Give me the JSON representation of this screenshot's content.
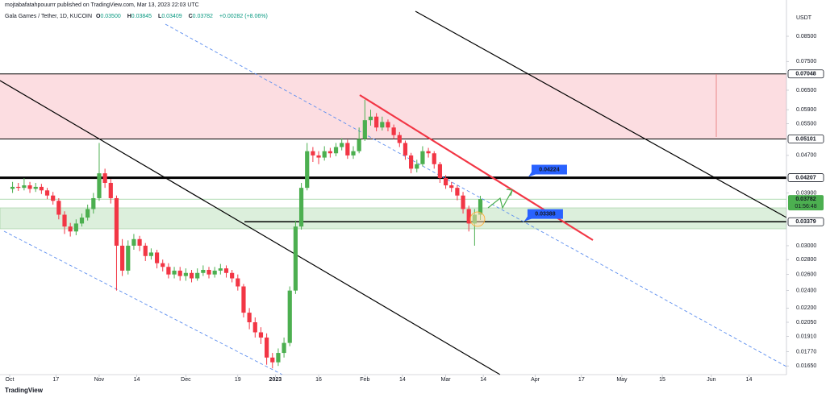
{
  "chart_data": {
    "type": "candlestick",
    "subtitle": "mojtabafatahpouurrr published on TradingView.com, Mar 13, 2023 22:03 UTC",
    "title": "Gala Games / Tether, 1D, KUCOIN",
    "ohlc": [
      {
        "key": "O",
        "value": "0.03500"
      },
      {
        "key": "H",
        "value": "0.03845"
      },
      {
        "key": "L",
        "value": "0.03409"
      },
      {
        "key": "C",
        "value": "0.03782"
      }
    ],
    "change": "+0.00282 (+8.06%)",
    "currency": "USDT",
    "log_scale": true,
    "colors": {
      "up": "#4caf50",
      "down": "#f23645"
    },
    "xlim": [
      -3.35,
      269
    ],
    "ylim": [
      0.0158,
      0.1018
    ],
    "xticks": [
      {
        "value": 0,
        "label": "Oct"
      },
      {
        "value": 16,
        "label": "17"
      },
      {
        "value": 31,
        "label": "Nov"
      },
      {
        "value": 44,
        "label": "14"
      },
      {
        "value": 61,
        "label": "Dec"
      },
      {
        "value": 79,
        "label": "19"
      },
      {
        "value": 92,
        "label": "2023"
      },
      {
        "value": 107,
        "label": "16"
      },
      {
        "value": 123,
        "label": "Feb"
      },
      {
        "value": 136,
        "label": "14"
      },
      {
        "value": 151,
        "label": "Mar"
      },
      {
        "value": 164,
        "label": "14"
      },
      {
        "value": 182,
        "label": "Apr"
      },
      {
        "value": 198,
        "label": "17"
      },
      {
        "value": 212,
        "label": "May"
      },
      {
        "value": 226,
        "label": "15"
      },
      {
        "value": 243,
        "label": "Jun"
      },
      {
        "value": 256,
        "label": "14"
      }
    ],
    "yticks": [
      {
        "value": 0.085,
        "label": "0.08500"
      },
      {
        "value": 0.075,
        "label": "0.07500"
      },
      {
        "value": 0.065,
        "label": "0.06500"
      },
      {
        "value": 0.059,
        "label": "0.05900"
      },
      {
        "value": 0.055,
        "label": "0.05500"
      },
      {
        "value": 0.047,
        "label": "0.04700"
      },
      {
        "value": 0.039,
        "label": "0.03900"
      },
      {
        "value": 0.03,
        "label": "0.03000"
      },
      {
        "value": 0.028,
        "label": "0.02800"
      },
      {
        "value": 0.026,
        "label": "0.02600"
      },
      {
        "value": 0.024,
        "label": "0.02400"
      },
      {
        "value": 0.022,
        "label": "0.02200"
      },
      {
        "value": 0.0205,
        "label": "0.02050"
      },
      {
        "value": 0.0191,
        "label": "0.01910"
      },
      {
        "value": 0.0177,
        "label": "0.01770"
      },
      {
        "value": 0.0165,
        "label": "0.01650"
      }
    ],
    "candles": {
      "x": [
        1,
        3,
        5,
        7,
        9,
        11,
        13,
        15,
        17,
        19,
        21,
        23,
        25,
        27,
        29,
        31,
        33,
        35,
        37,
        39,
        41,
        43,
        45,
        47,
        49,
        51,
        53,
        55,
        57,
        59,
        61,
        63,
        65,
        67,
        69,
        71,
        73,
        75,
        77,
        79,
        81,
        83,
        85,
        87,
        89,
        91,
        93,
        95,
        97,
        99,
        101,
        103,
        105,
        107,
        109,
        111,
        113,
        115,
        117,
        119,
        121,
        123,
        125,
        127,
        129,
        131,
        133,
        135,
        137,
        139,
        141,
        143,
        145,
        147,
        149,
        151,
        153,
        155,
        157,
        159,
        161,
        163
      ],
      "open": [
        0.0398,
        0.0402,
        0.04,
        0.0405,
        0.0398,
        0.0402,
        0.0395,
        0.0385,
        0.0375,
        0.035,
        0.033,
        0.0322,
        0.0335,
        0.0345,
        0.036,
        0.038,
        0.043,
        0.041,
        0.038,
        0.03,
        0.0265,
        0.03,
        0.031,
        0.03,
        0.0285,
        0.029,
        0.0275,
        0.027,
        0.026,
        0.0265,
        0.0258,
        0.0262,
        0.0255,
        0.0262,
        0.0266,
        0.026,
        0.0265,
        0.0268,
        0.0262,
        0.0255,
        0.0245,
        0.0215,
        0.0205,
        0.0195,
        0.019,
        0.0172,
        0.0168,
        0.0176,
        0.0185,
        0.024,
        0.033,
        0.04,
        0.048,
        0.047,
        0.0465,
        0.048,
        0.0475,
        0.049,
        0.05,
        0.047,
        0.048,
        0.051,
        0.056,
        0.057,
        0.054,
        0.0555,
        0.054,
        0.052,
        0.05,
        0.047,
        0.044,
        0.045,
        0.048,
        0.0475,
        0.045,
        0.042,
        0.0405,
        0.04,
        0.0385,
        0.036,
        0.0335,
        0.035
      ],
      "high": [
        0.0412,
        0.041,
        0.042,
        0.0412,
        0.041,
        0.0408,
        0.04,
        0.0392,
        0.038,
        0.0356,
        0.0336,
        0.0342,
        0.0352,
        0.0368,
        0.039,
        0.05,
        0.044,
        0.0418,
        0.0385,
        0.031,
        0.0308,
        0.0318,
        0.0315,
        0.0304,
        0.0296,
        0.0294,
        0.028,
        0.0275,
        0.027,
        0.027,
        0.0268,
        0.0266,
        0.0268,
        0.0272,
        0.027,
        0.027,
        0.0274,
        0.0272,
        0.0266,
        0.026,
        0.0248,
        0.022,
        0.021,
        0.02,
        0.0194,
        0.0176,
        0.018,
        0.019,
        0.0245,
        0.034,
        0.041,
        0.05,
        0.049,
        0.048,
        0.0492,
        0.0488,
        0.05,
        0.0512,
        0.0508,
        0.0492,
        0.054,
        0.062,
        0.059,
        0.058,
        0.057,
        0.0562,
        0.0548,
        0.0528,
        0.0506,
        0.0476,
        0.046,
        0.0492,
        0.0488,
        0.048,
        0.0455,
        0.0426,
        0.0412,
        0.0405,
        0.0392,
        0.0366,
        0.036,
        0.03845
      ],
      "low": [
        0.039,
        0.0394,
        0.0395,
        0.039,
        0.0392,
        0.0388,
        0.0378,
        0.0368,
        0.0342,
        0.0318,
        0.0314,
        0.0316,
        0.033,
        0.034,
        0.0352,
        0.0375,
        0.04,
        0.037,
        0.024,
        0.0258,
        0.026,
        0.0294,
        0.0292,
        0.0278,
        0.028,
        0.0268,
        0.0264,
        0.0255,
        0.0255,
        0.0252,
        0.0252,
        0.025,
        0.0252,
        0.0258,
        0.0255,
        0.0256,
        0.026,
        0.0256,
        0.025,
        0.024,
        0.021,
        0.0198,
        0.019,
        0.0184,
        0.0166,
        0.0163,
        0.0165,
        0.0172,
        0.0182,
        0.0236,
        0.0325,
        0.0395,
        0.0455,
        0.045,
        0.0458,
        0.0465,
        0.0468,
        0.0482,
        0.0462,
        0.0462,
        0.0475,
        0.0505,
        0.0545,
        0.053,
        0.0532,
        0.053,
        0.051,
        0.049,
        0.046,
        0.043,
        0.0432,
        0.0445,
        0.0465,
        0.044,
        0.041,
        0.0398,
        0.0392,
        0.0376,
        0.0352,
        0.0322,
        0.03,
        0.03409
      ],
      "close": [
        0.0402,
        0.04,
        0.0405,
        0.0398,
        0.0402,
        0.0395,
        0.0385,
        0.0375,
        0.035,
        0.033,
        0.0322,
        0.0335,
        0.0345,
        0.036,
        0.038,
        0.043,
        0.041,
        0.038,
        0.03,
        0.0265,
        0.03,
        0.031,
        0.03,
        0.0285,
        0.029,
        0.0275,
        0.027,
        0.026,
        0.0265,
        0.0258,
        0.0262,
        0.0255,
        0.0262,
        0.0266,
        0.026,
        0.0265,
        0.0268,
        0.0262,
        0.0255,
        0.0245,
        0.0215,
        0.0205,
        0.0195,
        0.019,
        0.0172,
        0.0168,
        0.0176,
        0.0185,
        0.024,
        0.033,
        0.04,
        0.048,
        0.047,
        0.0465,
        0.048,
        0.0475,
        0.049,
        0.05,
        0.047,
        0.048,
        0.051,
        0.056,
        0.057,
        0.054,
        0.0555,
        0.054,
        0.052,
        0.05,
        0.047,
        0.044,
        0.045,
        0.048,
        0.0475,
        0.045,
        0.042,
        0.0405,
        0.04,
        0.0385,
        0.036,
        0.0335,
        0.035,
        0.03782
      ]
    },
    "levels": [
      {
        "value": 0.07048,
        "label": "0.07048",
        "weight": 1
      },
      {
        "value": 0.05101,
        "label": "0.05101",
        "weight": 1
      },
      {
        "value": 0.04207,
        "label": "0.04207",
        "weight": 3
      },
      {
        "value": 0.03379,
        "label": "0.03379",
        "weight": 1.5,
        "from": 81.3
      }
    ],
    "zone": {
      "from": 0.05101,
      "to": 0.07048,
      "color": "#fcdde1"
    },
    "current": {
      "value": 0.03782,
      "label": "0.03782",
      "countdown": "01:56:48",
      "color": "#4caf50"
    },
    "callouts": [
      {
        "x": 179.6,
        "value": 0.04224,
        "label": "0.04224"
      },
      {
        "x": 178.2,
        "value": 0.03388,
        "label": "0.03388"
      }
    ]
  },
  "brand": "TradingView"
}
